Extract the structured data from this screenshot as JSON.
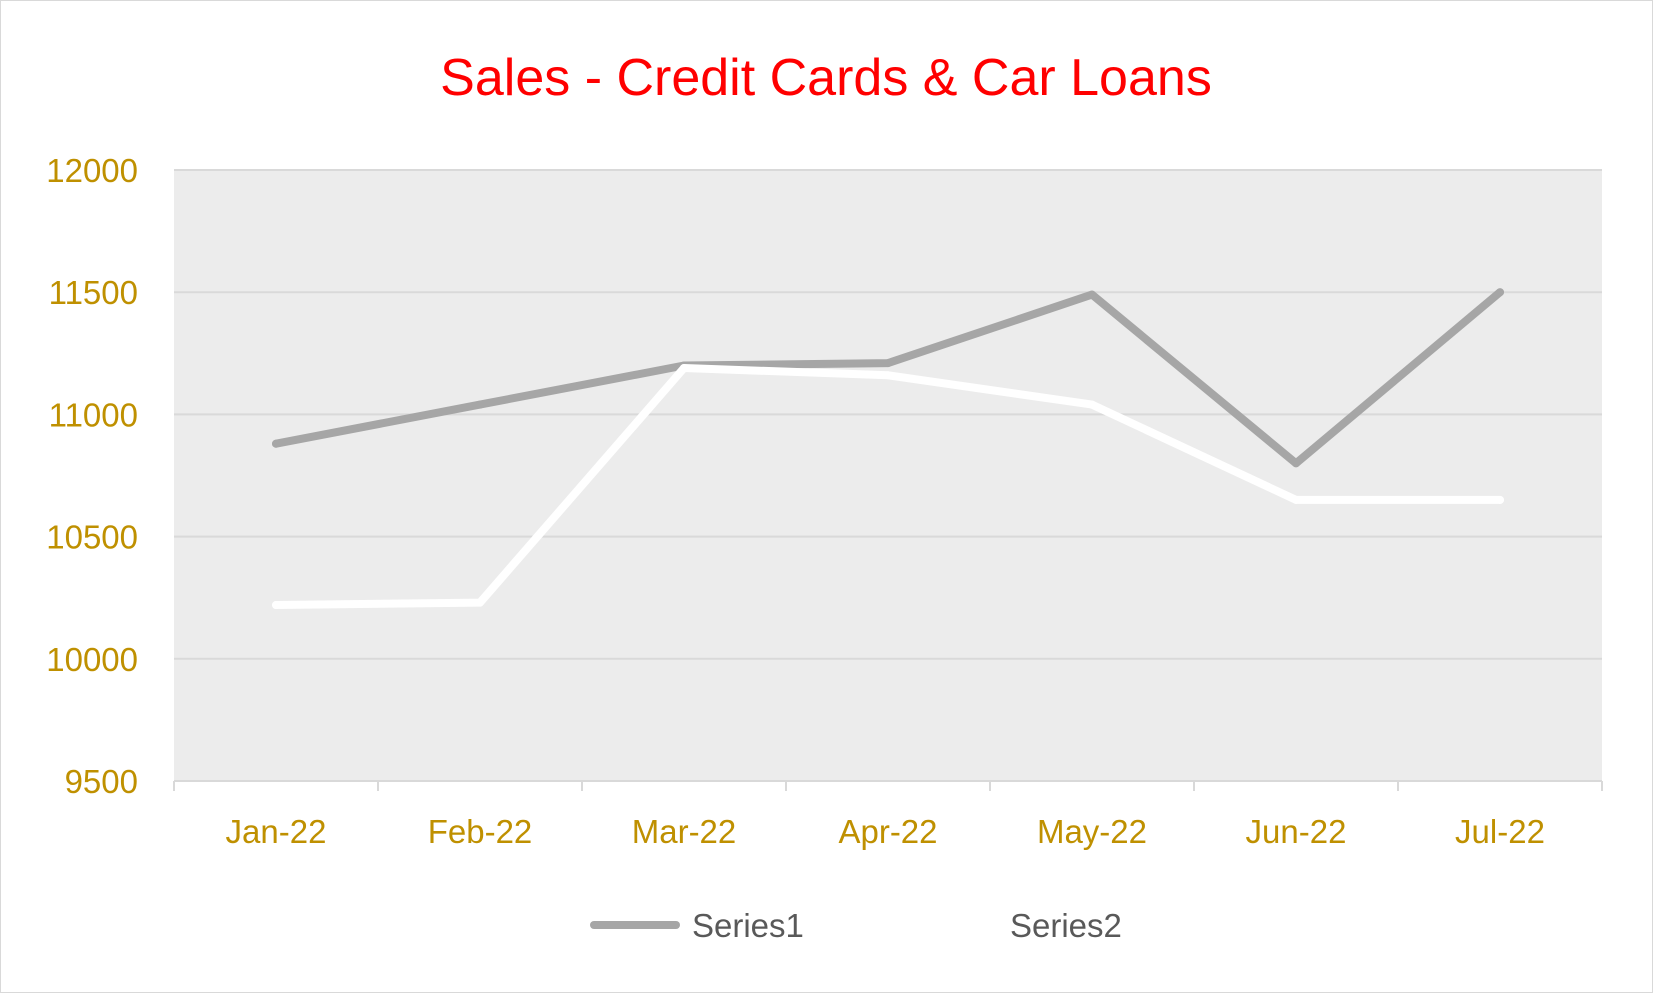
{
  "chart_data": {
    "type": "line",
    "title": "Sales - Credit Cards & Car Loans",
    "xlabel": "",
    "ylabel": "",
    "categories": [
      "Jan-22",
      "Feb-22",
      "Mar-22",
      "Apr-22",
      "May-22",
      "Jun-22",
      "Jul-22"
    ],
    "series": [
      {
        "name": "Series1",
        "color": "#a6a6a6",
        "values": [
          10880,
          11040,
          11200,
          11210,
          11490,
          10800,
          11500
        ]
      },
      {
        "name": "Series2",
        "color": "#ffffff",
        "values": [
          10220,
          10230,
          11190,
          11160,
          11040,
          10650,
          10650
        ]
      }
    ],
    "ylim": [
      9500,
      12000
    ],
    "yticks": [
      "12000",
      "11500",
      "11000",
      "10500",
      "10000",
      "9500"
    ],
    "grid": true,
    "legend": "bottom",
    "colors": {
      "title": "#ff0000",
      "tick_labels": "#bf9000",
      "plot_background": "#ececec",
      "gridline": "#d9d9d9"
    }
  }
}
